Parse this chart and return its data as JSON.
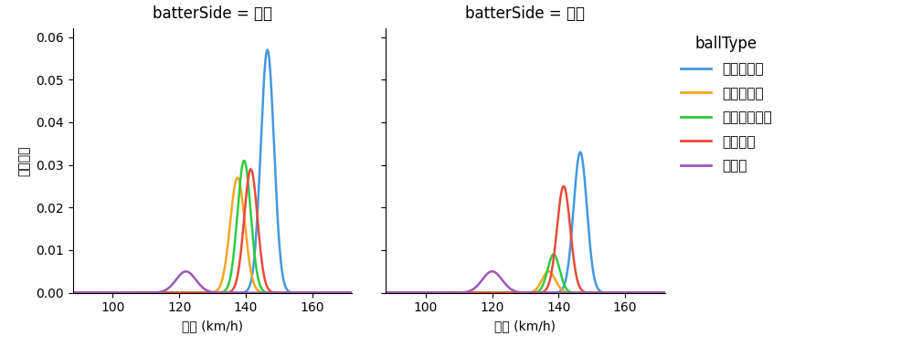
{
  "title_right": "batterSide = 右打",
  "title_left": "batterSide = 左打",
  "xlabel": "球速 (km/h)",
  "ylabel": "確率密度",
  "legend_title": "ballType",
  "legend_labels": [
    "ストレート",
    "スライダー",
    "カットボール",
    "シンカー",
    "カーブ"
  ],
  "colors": [
    "#4299e1",
    "#f6a623",
    "#2ecc40",
    "#e74c3c",
    "#9b59b6"
  ],
  "xlim": [
    88,
    172
  ],
  "xticks": [
    100,
    120,
    140,
    160
  ],
  "ylim": [
    0,
    0.062
  ],
  "right": {
    "straight": {
      "mean": 146.5,
      "std": 2.0,
      "peak": 0.057
    },
    "slider": {
      "mean": 137.5,
      "std": 2.2,
      "peak": 0.027
    },
    "cutter": {
      "mean": 139.5,
      "std": 2.0,
      "peak": 0.031
    },
    "sinker": {
      "mean": 141.5,
      "std": 2.0,
      "peak": 0.029
    },
    "curve": {
      "mean": 122.0,
      "std": 3.0,
      "peak": 0.005
    }
  },
  "left": {
    "straight": {
      "mean": 146.5,
      "std": 2.0,
      "peak": 0.033
    },
    "slider": {
      "mean": 137.0,
      "std": 2.0,
      "peak": 0.005
    },
    "cutter": {
      "mean": 138.5,
      "std": 1.8,
      "peak": 0.009
    },
    "sinker": {
      "mean": 141.5,
      "std": 2.0,
      "peak": 0.025
    },
    "curve": {
      "mean": 120.0,
      "std": 3.0,
      "peak": 0.005
    }
  },
  "background_color": "#ffffff",
  "line_width": 1.8
}
